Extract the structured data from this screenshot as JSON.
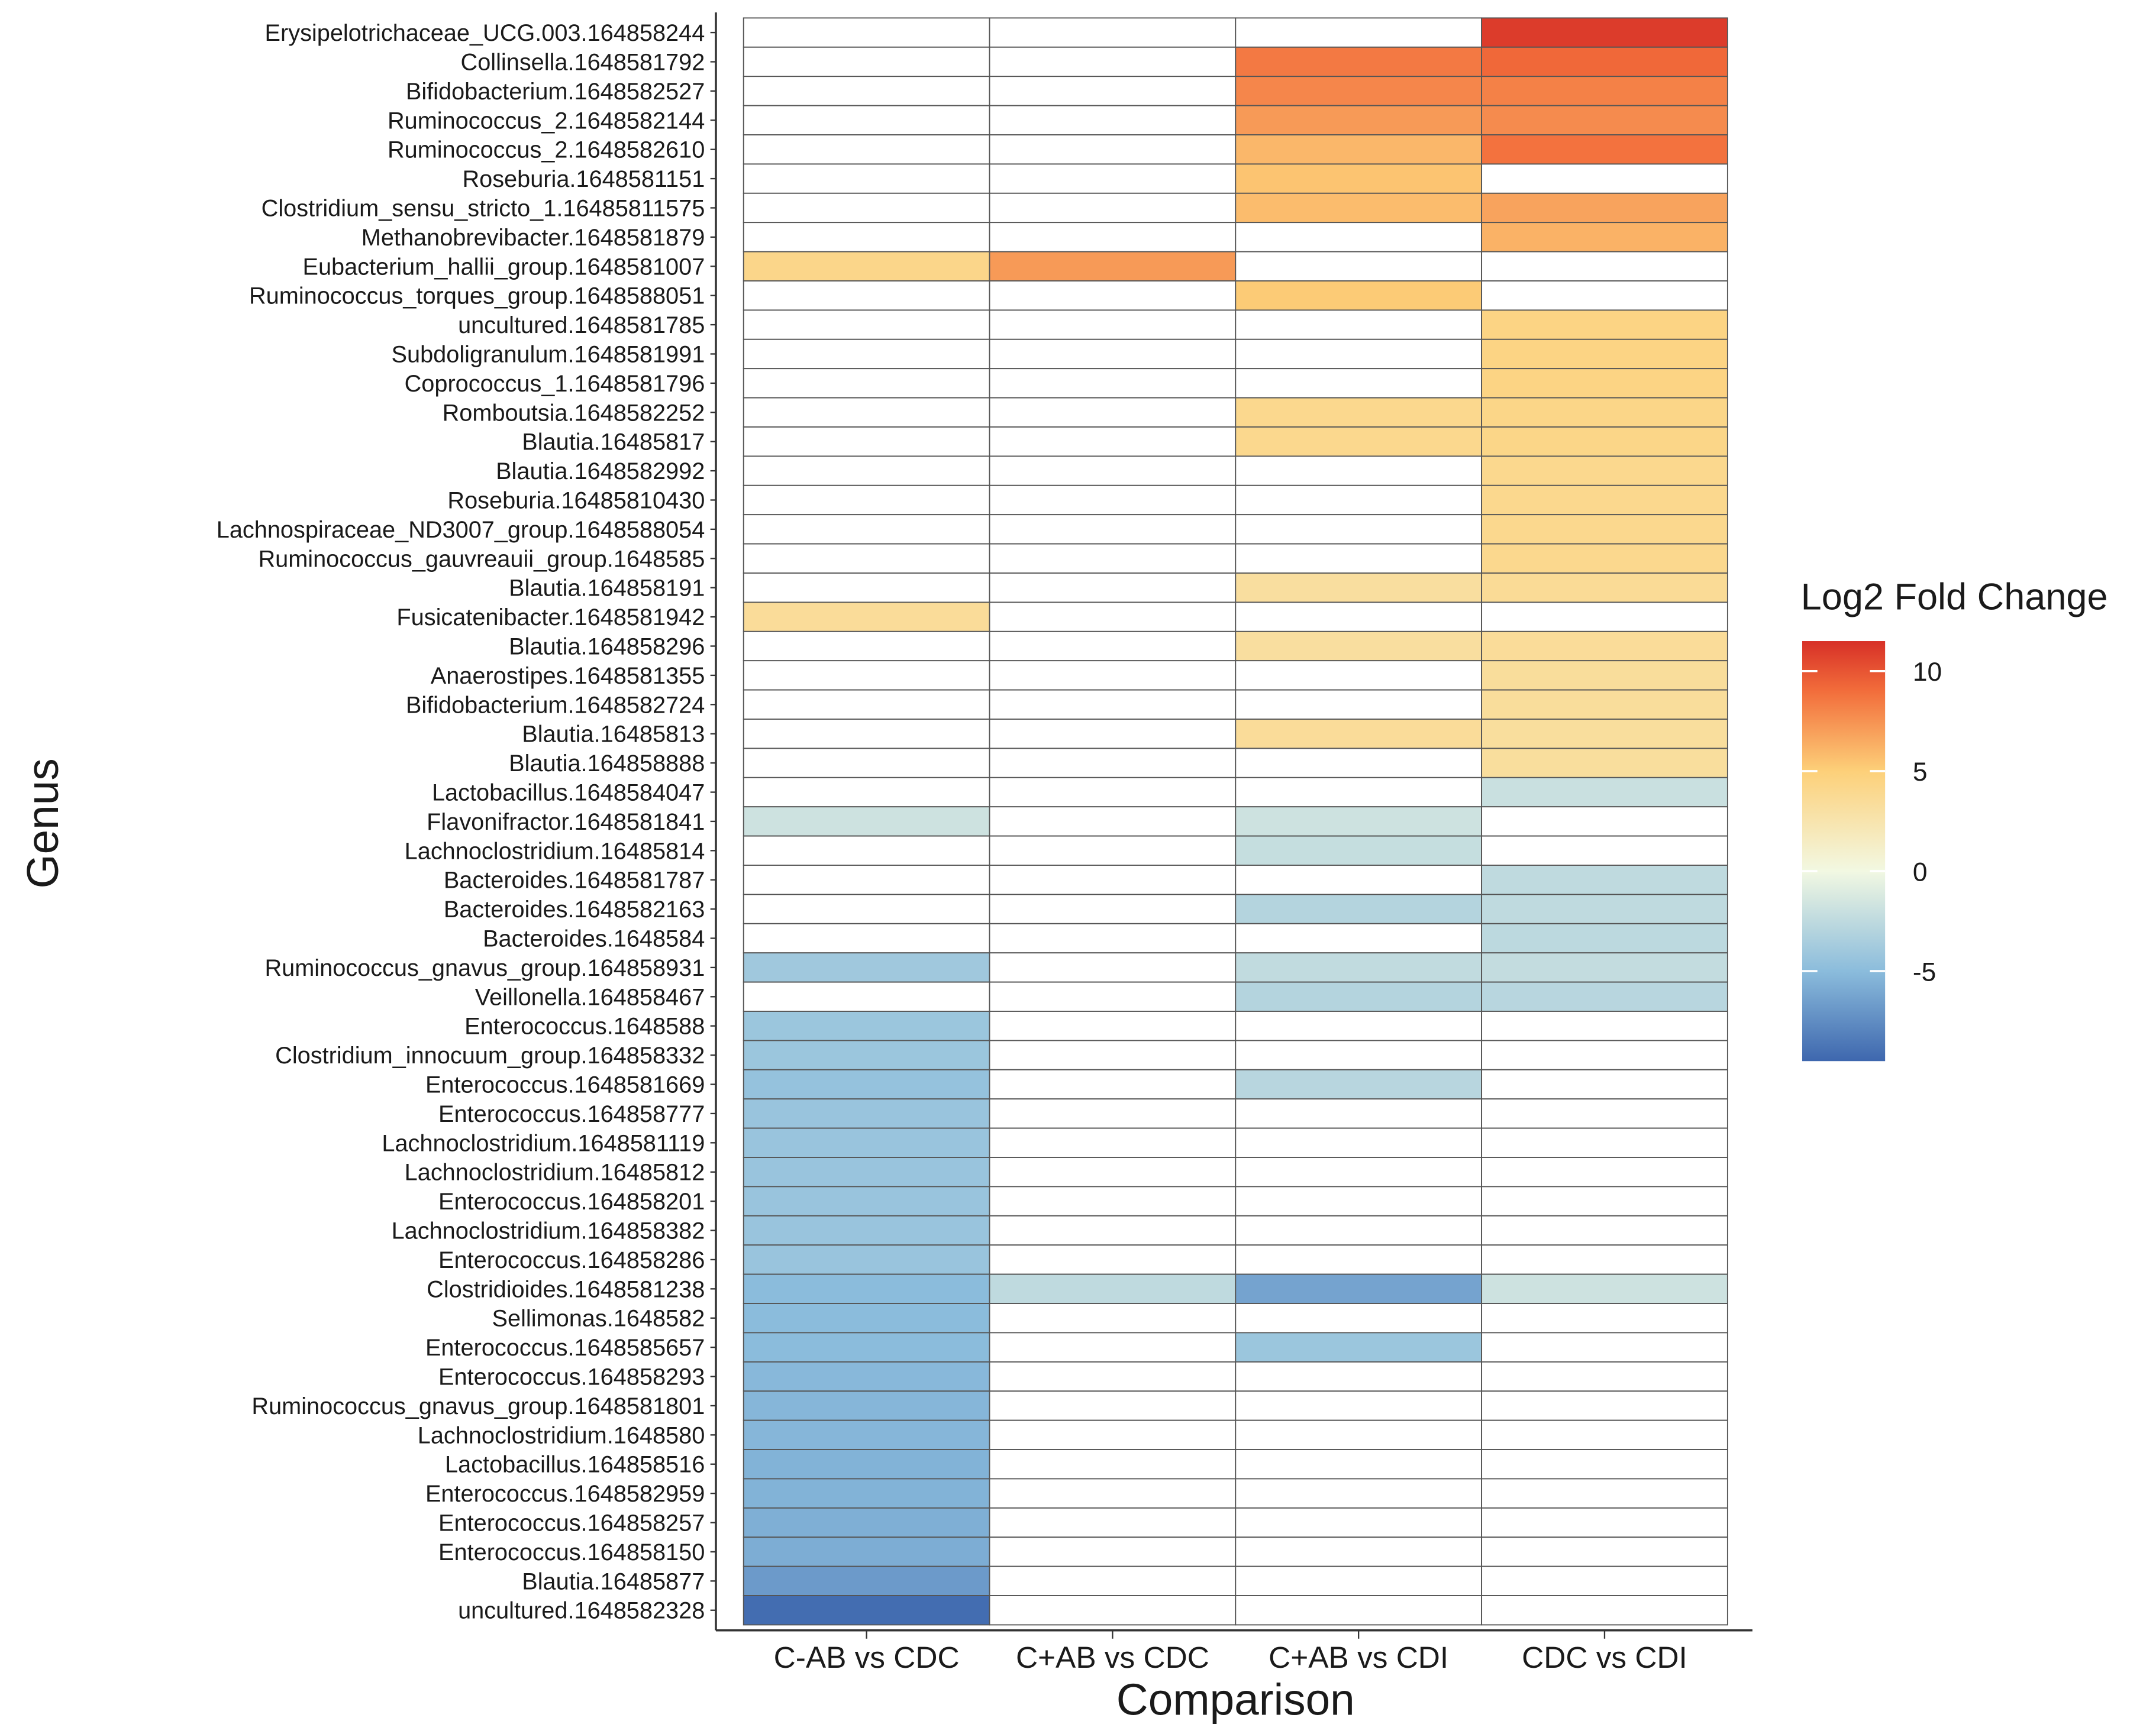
{
  "chart_data": {
    "type": "heatmap",
    "title": "",
    "xlabel": "Comparison",
    "ylabel": "Genus",
    "columns": [
      "C-AB vs CDC",
      "C+AB vs CDC",
      "C+AB vs CDI",
      "CDC vs CDI"
    ],
    "rows": [
      "Erysipelotrichaceae_UCG.003.164858244",
      "Collinsella.1648581792",
      "Bifidobacterium.1648582527",
      "Ruminococcus_2.1648582144",
      "Ruminococcus_2.1648582610",
      "Roseburia.1648581151",
      "Clostridium_sensu_stricto_1.16485811575",
      "Methanobrevibacter.1648581879",
      "Eubacterium_hallii_group.1648581007",
      "Ruminococcus_torques_group.1648588051",
      "uncultured.1648581785",
      "Subdoligranulum.1648581991",
      "Coprococcus_1.1648581796",
      "Romboutsia.1648582252",
      "Blautia.16485817",
      "Blautia.1648582992",
      "Roseburia.16485810430",
      "Lachnospiraceae_ND3007_group.1648588054",
      "Ruminococcus_gauvreauii_group.1648585",
      "Blautia.164858191",
      "Fusicatenibacter.1648581942",
      "Blautia.164858296",
      "Anaerostipes.1648581355",
      "Bifidobacterium.1648582724",
      "Blautia.16485813",
      "Blautia.164858888",
      "Lactobacillus.1648584047",
      "Flavonifractor.1648581841",
      "Lachnoclostridium.16485814",
      "Bacteroides.1648581787",
      "Bacteroides.1648582163",
      "Bacteroides.1648584",
      "Ruminococcus_gnavus_group.164858931",
      "Veillonella.164858467",
      "Enterococcus.1648588",
      "Clostridium_innocuum_group.164858332",
      "Enterococcus.1648581669",
      "Enterococcus.164858777",
      "Lachnoclostridium.1648581119",
      "Lachnoclostridium.16485812",
      "Enterococcus.164858201",
      "Lachnoclostridium.164858382",
      "Enterococcus.164858286",
      "Clostridioides.1648581238",
      "Sellimonas.1648582",
      "Enterococcus.1648585657",
      "Enterococcus.164858293",
      "Ruminococcus_gnavus_group.1648581801",
      "Lachnoclostridium.1648580",
      "Lactobacillus.164858516",
      "Enterococcus.1648582959",
      "Enterococcus.164858257",
      "Enterococcus.164858150",
      "Blautia.16485877",
      "uncultured.1648582328"
    ],
    "values": [
      [
        null,
        null,
        null,
        11
      ],
      [
        null,
        null,
        8.5,
        9.2
      ],
      [
        null,
        null,
        8,
        8.2
      ],
      [
        null,
        null,
        7.2,
        7.8
      ],
      [
        null,
        null,
        6,
        8.8
      ],
      [
        null,
        null,
        5.5,
        null
      ],
      [
        null,
        null,
        5.8,
        6.8
      ],
      [
        null,
        null,
        null,
        6.2
      ],
      [
        4.2,
        7.2,
        null,
        null
      ],
      [
        null,
        null,
        5.2,
        null
      ],
      [
        null,
        null,
        null,
        4.5
      ],
      [
        null,
        null,
        null,
        4.5
      ],
      [
        null,
        null,
        null,
        4.5
      ],
      [
        null,
        null,
        4,
        4.3
      ],
      [
        null,
        null,
        4,
        4.3
      ],
      [
        null,
        null,
        null,
        4
      ],
      [
        null,
        null,
        null,
        4
      ],
      [
        null,
        null,
        null,
        4
      ],
      [
        null,
        null,
        null,
        4
      ],
      [
        null,
        null,
        3.2,
        3.6
      ],
      [
        3.5,
        null,
        null,
        null
      ],
      [
        null,
        null,
        3.2,
        3.5
      ],
      [
        null,
        null,
        null,
        3.4
      ],
      [
        null,
        null,
        null,
        3.4
      ],
      [
        null,
        null,
        3.5,
        3.3
      ],
      [
        null,
        null,
        null,
        3.3
      ],
      [
        null,
        null,
        null,
        -2
      ],
      [
        -1.8,
        null,
        -1.8,
        null
      ],
      [
        null,
        null,
        -2.2,
        null
      ],
      [
        null,
        null,
        null,
        -2.5
      ],
      [
        null,
        null,
        -3,
        -2.5
      ],
      [
        null,
        null,
        null,
        -2.6
      ],
      [
        -4,
        null,
        -2.4,
        -2.3
      ],
      [
        null,
        null,
        -3,
        -2.8
      ],
      [
        -4.2,
        null,
        null,
        null
      ],
      [
        -4.2,
        null,
        null,
        null
      ],
      [
        -4.5,
        null,
        -2.8,
        null
      ],
      [
        -4.3,
        null,
        null,
        null
      ],
      [
        -4.3,
        null,
        null,
        null
      ],
      [
        -4.3,
        null,
        null,
        null
      ],
      [
        -4.3,
        null,
        null,
        null
      ],
      [
        -4.3,
        null,
        null,
        null
      ],
      [
        -4.3,
        null,
        null,
        null
      ],
      [
        -5,
        -2.5,
        -6.3,
        -1.8
      ],
      [
        -5,
        null,
        null,
        null
      ],
      [
        -5,
        null,
        -4.2,
        null
      ],
      [
        -5.2,
        null,
        null,
        null
      ],
      [
        -5.3,
        null,
        null,
        null
      ],
      [
        -5.3,
        null,
        null,
        null
      ],
      [
        -5.5,
        null,
        null,
        null
      ],
      [
        -5.5,
        null,
        null,
        null
      ],
      [
        -5.7,
        null,
        null,
        null
      ],
      [
        -5.8,
        null,
        null,
        null
      ],
      [
        -6.8,
        null,
        null,
        null
      ],
      [
        -9.2,
        null,
        null,
        null
      ]
    ],
    "color_scale": {
      "title": "Log2 Fold Change",
      "range": [
        -9.5,
        11.5
      ],
      "ticks": [
        10,
        5,
        0,
        -5
      ],
      "stops": [
        {
          "value": -9.5,
          "color": "#3e67ae"
        },
        {
          "value": -5,
          "color": "#8bbcdc"
        },
        {
          "value": 0,
          "color": "#f2f8e2"
        },
        {
          "value": 5,
          "color": "#fdd079"
        },
        {
          "value": 9,
          "color": "#f26d3b"
        },
        {
          "value": 11.5,
          "color": "#d73027"
        }
      ],
      "na_color": "#ffffff"
    },
    "legend_position": "right",
    "grid": false
  }
}
